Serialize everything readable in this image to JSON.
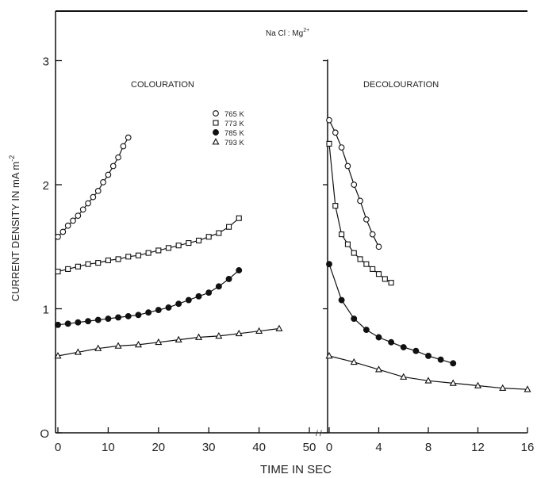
{
  "chart_data": {
    "type": "scatter",
    "title": "Na Cl : Mg",
    "title_superscript": "2+",
    "ylabel_main": "CURRENT DENSITY IN  mA m",
    "ylabel_sup": "-2",
    "xlabel": "TIME IN SEC",
    "ylim": [
      0,
      3.4
    ],
    "y_ticks": [
      0,
      1,
      2,
      3
    ],
    "y_tick_labels": [
      "O",
      "1",
      "2",
      "3"
    ],
    "legend_position": "inside colouration panel, upper right",
    "panels": [
      {
        "label": "COLOURATION",
        "xlim": [
          0,
          55
        ],
        "x_ticks": [
          0,
          10,
          20,
          30,
          40,
          50
        ],
        "x_tick_labels": [
          "0",
          "10",
          "20",
          "30",
          "40",
          "50"
        ]
      },
      {
        "label": "DECOLOURATION",
        "xlim": [
          0,
          16
        ],
        "x_ticks": [
          0,
          4,
          8,
          12,
          16
        ],
        "x_tick_labels": [
          "0",
          "4",
          "8",
          "12",
          "16"
        ]
      }
    ],
    "series": [
      {
        "name": "765 K",
        "marker": "circle-open",
        "colouration": [
          [
            0,
            1.58
          ],
          [
            1,
            1.62
          ],
          [
            2,
            1.67
          ],
          [
            3,
            1.71
          ],
          [
            4,
            1.75
          ],
          [
            5,
            1.8
          ],
          [
            6,
            1.85
          ],
          [
            7,
            1.9
          ],
          [
            8,
            1.95
          ],
          [
            9,
            2.02
          ],
          [
            10,
            2.08
          ],
          [
            11,
            2.15
          ],
          [
            12,
            2.22
          ],
          [
            13,
            2.31
          ],
          [
            14,
            2.38
          ]
        ],
        "decolouration": [
          [
            0,
            2.52
          ],
          [
            0.5,
            2.42
          ],
          [
            1,
            2.3
          ],
          [
            1.5,
            2.15
          ],
          [
            2,
            2.0
          ],
          [
            2.5,
            1.87
          ],
          [
            3,
            1.72
          ],
          [
            3.5,
            1.6
          ],
          [
            4,
            1.5
          ]
        ]
      },
      {
        "name": "773 K",
        "marker": "square-open",
        "colouration": [
          [
            0,
            1.3
          ],
          [
            2,
            1.32
          ],
          [
            4,
            1.34
          ],
          [
            6,
            1.36
          ],
          [
            8,
            1.37
          ],
          [
            10,
            1.39
          ],
          [
            12,
            1.4
          ],
          [
            14,
            1.42
          ],
          [
            16,
            1.43
          ],
          [
            18,
            1.45
          ],
          [
            20,
            1.47
          ],
          [
            22,
            1.49
          ],
          [
            24,
            1.51
          ],
          [
            26,
            1.53
          ],
          [
            28,
            1.55
          ],
          [
            30,
            1.58
          ],
          [
            32,
            1.61
          ],
          [
            34,
            1.66
          ],
          [
            36,
            1.73
          ]
        ],
        "decolouration": [
          [
            0,
            2.33
          ],
          [
            0.5,
            1.83
          ],
          [
            1,
            1.6
          ],
          [
            1.5,
            1.52
          ],
          [
            2,
            1.45
          ],
          [
            2.5,
            1.4
          ],
          [
            3,
            1.36
          ],
          [
            3.5,
            1.32
          ],
          [
            4,
            1.28
          ],
          [
            4.5,
            1.24
          ],
          [
            5,
            1.21
          ]
        ]
      },
      {
        "name": "785 K",
        "marker": "circle-filled",
        "colouration": [
          [
            0,
            0.87
          ],
          [
            2,
            0.88
          ],
          [
            4,
            0.89
          ],
          [
            6,
            0.9
          ],
          [
            8,
            0.91
          ],
          [
            10,
            0.92
          ],
          [
            12,
            0.93
          ],
          [
            14,
            0.94
          ],
          [
            16,
            0.95
          ],
          [
            18,
            0.97
          ],
          [
            20,
            0.99
          ],
          [
            22,
            1.01
          ],
          [
            24,
            1.04
          ],
          [
            26,
            1.07
          ],
          [
            28,
            1.1
          ],
          [
            30,
            1.13
          ],
          [
            32,
            1.18
          ],
          [
            34,
            1.24
          ],
          [
            36,
            1.31
          ]
        ],
        "decolouration": [
          [
            0,
            1.36
          ],
          [
            1,
            1.07
          ],
          [
            2,
            0.92
          ],
          [
            3,
            0.83
          ],
          [
            4,
            0.77
          ],
          [
            5,
            0.73
          ],
          [
            6,
            0.69
          ],
          [
            7,
            0.66
          ],
          [
            8,
            0.62
          ],
          [
            9,
            0.59
          ],
          [
            10,
            0.56
          ]
        ]
      },
      {
        "name": "793 K",
        "marker": "triangle-open",
        "colouration": [
          [
            0,
            0.62
          ],
          [
            4,
            0.65
          ],
          [
            8,
            0.68
          ],
          [
            12,
            0.7
          ],
          [
            16,
            0.71
          ],
          [
            20,
            0.73
          ],
          [
            24,
            0.75
          ],
          [
            28,
            0.77
          ],
          [
            32,
            0.78
          ],
          [
            36,
            0.8
          ],
          [
            40,
            0.82
          ],
          [
            44,
            0.84
          ]
        ],
        "decolouration": [
          [
            0,
            0.62
          ],
          [
            2,
            0.57
          ],
          [
            4,
            0.51
          ],
          [
            6,
            0.45
          ],
          [
            8,
            0.42
          ],
          [
            10,
            0.4
          ],
          [
            12,
            0.38
          ],
          [
            14,
            0.36
          ],
          [
            16,
            0.35
          ]
        ]
      }
    ]
  }
}
